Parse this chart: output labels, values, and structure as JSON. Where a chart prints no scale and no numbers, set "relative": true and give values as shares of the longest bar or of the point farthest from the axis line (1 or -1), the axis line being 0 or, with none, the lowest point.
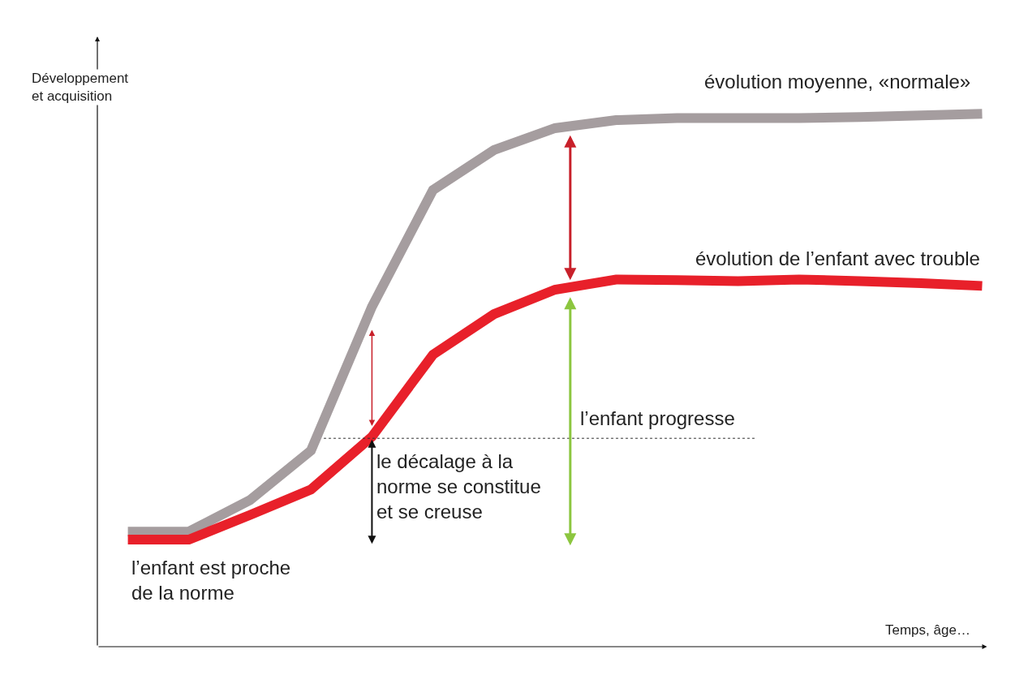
{
  "chart_data": {
    "type": "line",
    "relative": true,
    "xlabel": "Temps, âge…",
    "ylabel": "Développement\net acquisition",
    "categories": [
      null,
      null,
      null,
      null,
      null,
      null,
      null,
      null,
      null,
      null,
      null,
      null,
      null,
      null,
      null
    ],
    "series": [
      {
        "name": "évolution moyenne, «normale»",
        "color": "#a59d9f",
        "values": [
          0.216,
          0.216,
          0.275,
          0.368,
          0.638,
          0.857,
          0.932,
          0.973,
          0.988,
          0.992,
          0.992,
          0.992,
          0.994,
          0.997,
          1.0
        ]
      },
      {
        "name": "évolution de l’enfant avec trouble",
        "color": "#e8202a",
        "values": [
          0.201,
          0.201,
          0.247,
          0.295,
          0.394,
          0.548,
          0.624,
          0.67,
          0.689,
          0.688,
          0.686,
          0.689,
          0.686,
          0.682,
          0.677
        ]
      }
    ],
    "annotations": [
      "l’enfant est proche\nde la norme",
      "le décalage à la\nnorme se constitue\net se creuse",
      "l’enfant progresse"
    ],
    "ref_lines": [
      {
        "axis": "y",
        "value": 0.391,
        "color": "#333333",
        "line_style": "dotted"
      }
    ]
  }
}
